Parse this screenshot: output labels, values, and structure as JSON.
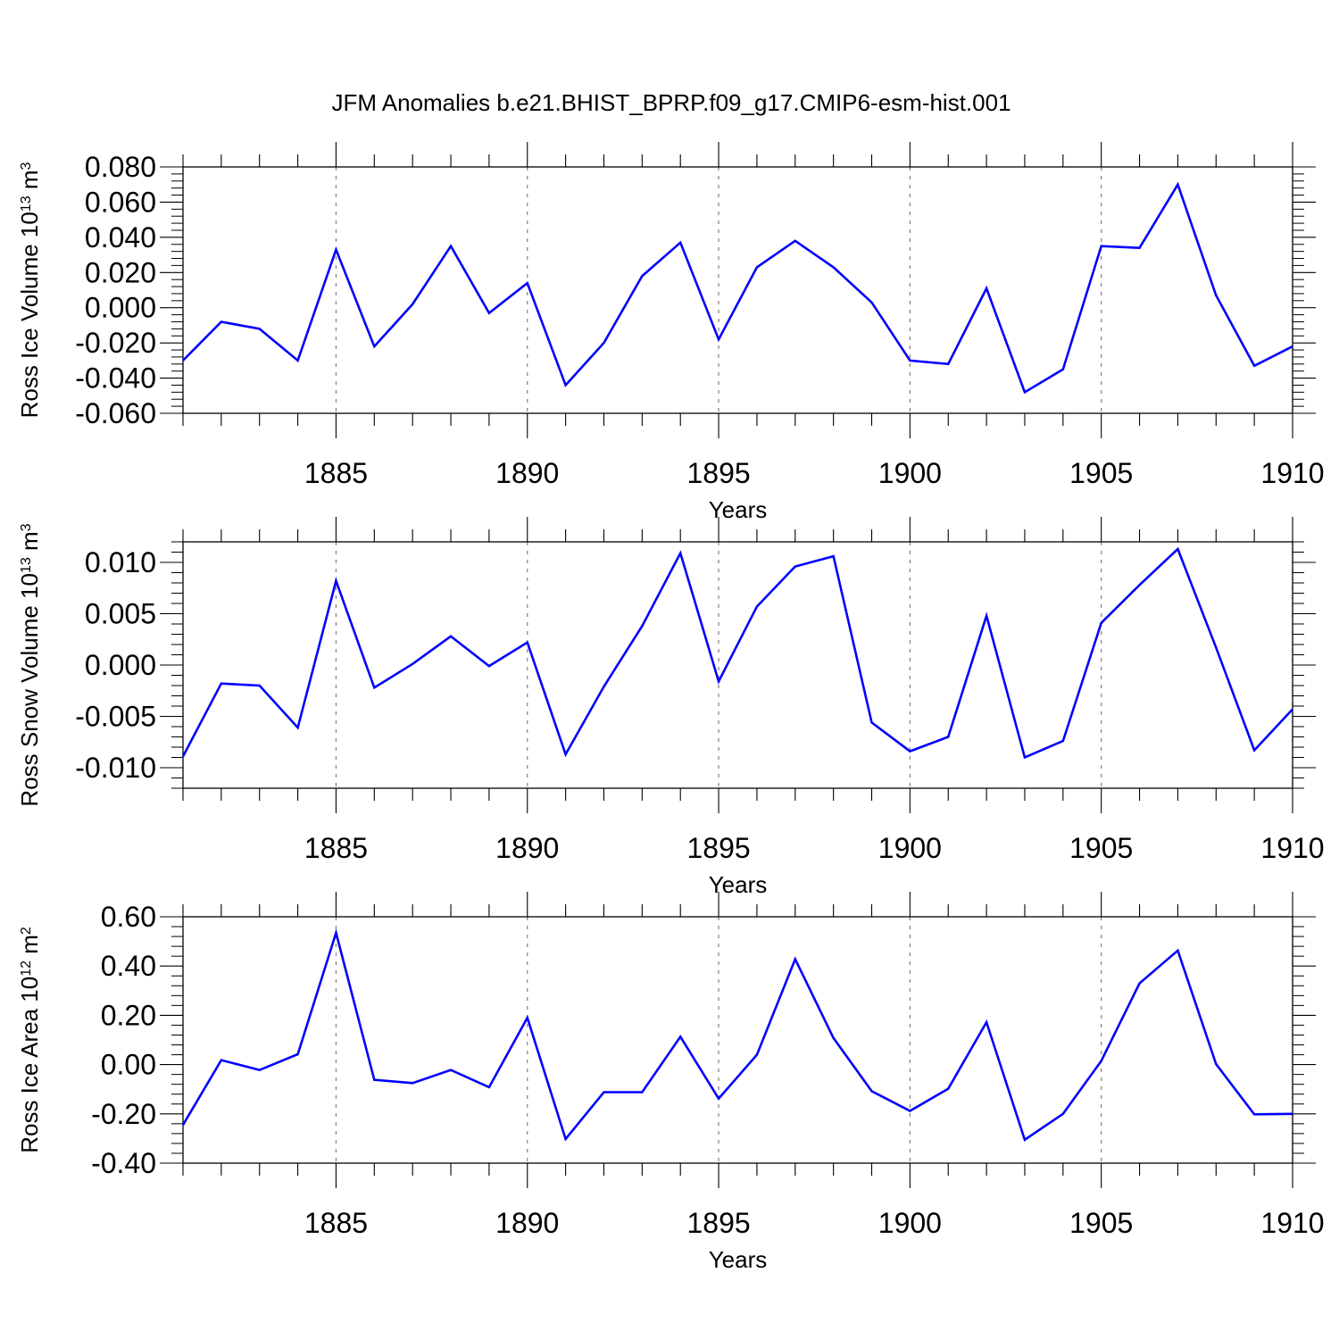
{
  "title": "JFM Anomalies b.e21.BHIST_BPRP.f09_g17.CMIP6-esm-hist.001",
  "colors": {
    "series": "#0000ff",
    "axis": "#000000",
    "grid": "#808080",
    "background": "#ffffff"
  },
  "chart_data": [
    {
      "type": "line",
      "ylabel": {
        "pre": "Ross Ice Volume 10",
        "sup1": "13",
        "mid": " m",
        "sup2": "3"
      },
      "xlabel": "Years",
      "xlim": [
        1881,
        1910
      ],
      "ylim": [
        -0.06,
        0.08
      ],
      "yticks": [
        -0.06,
        -0.04,
        -0.02,
        0.0,
        0.02,
        0.04,
        0.06,
        0.08
      ],
      "ytick_labels": [
        "-0.060",
        "-0.040",
        "-0.020",
        "0.000",
        "0.020",
        "0.040",
        "0.060",
        "0.080"
      ],
      "xticks": [
        1885,
        1890,
        1895,
        1900,
        1905,
        1910
      ],
      "xtick_labels": [
        "1885",
        "1890",
        "1895",
        "1900",
        "1905",
        "1910"
      ],
      "x": [
        1881,
        1882,
        1883,
        1884,
        1885,
        1886,
        1887,
        1888,
        1889,
        1890,
        1891,
        1892,
        1893,
        1894,
        1895,
        1896,
        1897,
        1898,
        1899,
        1900,
        1901,
        1902,
        1903,
        1904,
        1905,
        1906,
        1907,
        1908,
        1909,
        1910
      ],
      "values": [
        -0.03,
        -0.008,
        -0.012,
        -0.03,
        0.033,
        -0.022,
        0.002,
        0.035,
        -0.003,
        0.014,
        -0.044,
        -0.02,
        0.018,
        0.037,
        -0.018,
        0.023,
        0.038,
        0.023,
        0.003,
        -0.03,
        -0.032,
        0.011,
        -0.048,
        -0.035,
        0.035,
        0.034,
        0.07,
        0.007,
        -0.033,
        -0.022
      ]
    },
    {
      "type": "line",
      "ylabel": {
        "pre": "Ross Snow Volume 10",
        "sup1": "13",
        "mid": " m",
        "sup2": "3"
      },
      "xlabel": "Years",
      "xlim": [
        1881,
        1910
      ],
      "ylim": [
        -0.012,
        0.012
      ],
      "yticks": [
        -0.01,
        -0.005,
        0.0,
        0.005,
        0.01
      ],
      "ytick_labels": [
        "-0.010",
        "-0.005",
        "0.000",
        "0.005",
        "0.010"
      ],
      "xticks": [
        1885,
        1890,
        1895,
        1900,
        1905,
        1910
      ],
      "xtick_labels": [
        "1885",
        "1890",
        "1895",
        "1900",
        "1905",
        "1910"
      ],
      "x": [
        1881,
        1882,
        1883,
        1884,
        1885,
        1886,
        1887,
        1888,
        1889,
        1890,
        1891,
        1892,
        1893,
        1894,
        1895,
        1896,
        1897,
        1898,
        1899,
        1900,
        1901,
        1902,
        1903,
        1904,
        1905,
        1906,
        1907,
        1908,
        1909,
        1910
      ],
      "values": [
        -0.0089,
        -0.0018,
        -0.002,
        -0.0061,
        0.0082,
        -0.0022,
        0.0001,
        0.0028,
        -0.0001,
        0.0022,
        -0.0087,
        -0.0021,
        0.0038,
        0.0109,
        -0.0016,
        0.0057,
        0.0096,
        0.0106,
        -0.0056,
        -0.0084,
        -0.007,
        0.0048,
        -0.009,
        -0.0074,
        0.0041,
        0.0078,
        0.0113,
        0.0017,
        -0.0083,
        -0.0043
      ]
    },
    {
      "type": "line",
      "ylabel": {
        "pre": "Ross Ice Area 10",
        "sup1": "12",
        "mid": " m",
        "sup2": "2"
      },
      "xlabel": "Years",
      "xlim": [
        1881,
        1910
      ],
      "ylim": [
        -0.4,
        0.6
      ],
      "yticks": [
        -0.4,
        -0.2,
        0.0,
        0.2,
        0.4,
        0.6
      ],
      "ytick_labels": [
        "-0.40",
        "-0.20",
        "0.00",
        "0.20",
        "0.40",
        "0.60"
      ],
      "xticks": [
        1885,
        1890,
        1895,
        1900,
        1905,
        1910
      ],
      "xtick_labels": [
        "1885",
        "1890",
        "1895",
        "1900",
        "1905",
        "1910"
      ],
      "x": [
        1881,
        1882,
        1883,
        1884,
        1885,
        1886,
        1887,
        1888,
        1889,
        1890,
        1891,
        1892,
        1893,
        1894,
        1895,
        1896,
        1897,
        1898,
        1899,
        1900,
        1901,
        1902,
        1903,
        1904,
        1905,
        1906,
        1907,
        1908,
        1909,
        1910
      ],
      "values": [
        -0.245,
        0.018,
        -0.022,
        0.042,
        0.535,
        -0.062,
        -0.075,
        -0.022,
        -0.092,
        0.19,
        -0.302,
        -0.112,
        -0.112,
        0.113,
        -0.138,
        0.04,
        0.428,
        0.108,
        -0.108,
        -0.188,
        -0.098,
        0.172,
        -0.305,
        -0.2,
        0.015,
        0.33,
        0.463,
        0.002,
        -0.202,
        -0.2
      ]
    }
  ]
}
